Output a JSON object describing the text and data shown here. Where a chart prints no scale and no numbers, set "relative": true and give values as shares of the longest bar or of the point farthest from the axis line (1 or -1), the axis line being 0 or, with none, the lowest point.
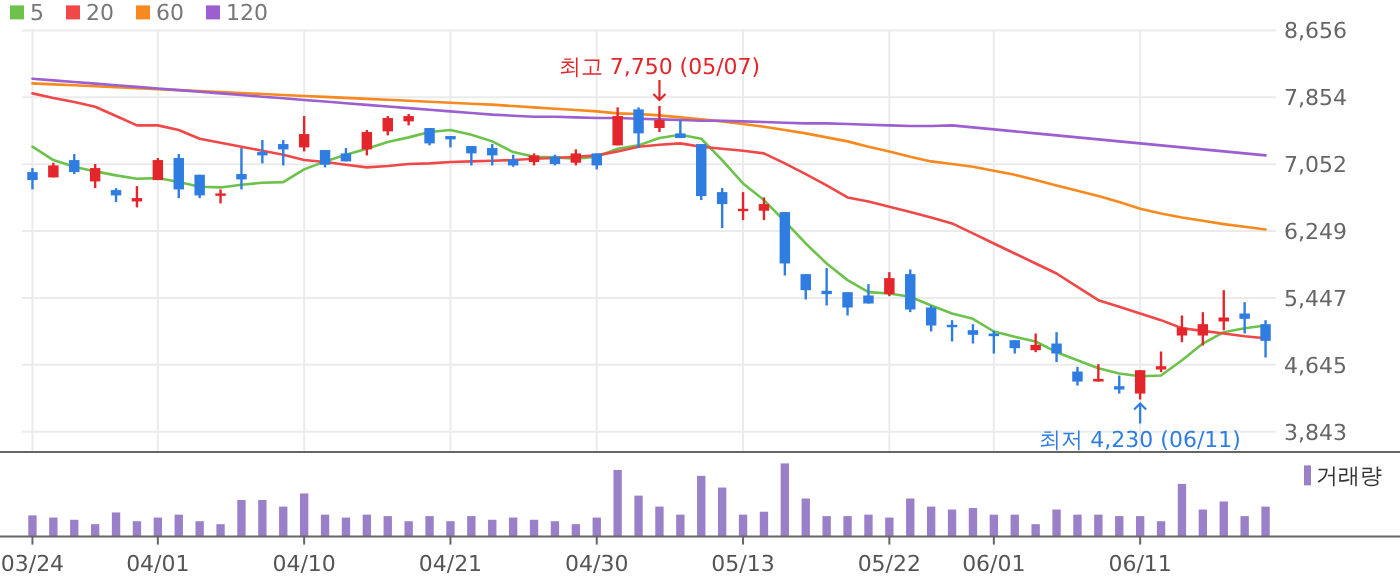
{
  "chart_data": [
    {
      "type": "candlestick",
      "categories": [
        null,
        null,
        null,
        null,
        null,
        null,
        null,
        null,
        null,
        null,
        null,
        null,
        null,
        null,
        null,
        null,
        null,
        null,
        null,
        null,
        null,
        null,
        null,
        null,
        null,
        null,
        null,
        null,
        null,
        null,
        null,
        null,
        null,
        null,
        null,
        null,
        null,
        null,
        null,
        null,
        null,
        null,
        null,
        null,
        null,
        null,
        null,
        null,
        null,
        null,
        null,
        null,
        null,
        null,
        null,
        null,
        null,
        null,
        null,
        null
      ],
      "ohlc": [
        [
          6957,
          7005,
          6749,
          6861
        ],
        [
          6893,
          7069,
          6893,
          7037
        ],
        [
          7101,
          7173,
          6933,
          6957
        ],
        [
          6845,
          7053,
          6765,
          7005
        ],
        [
          6741,
          6765,
          6597,
          6677
        ],
        [
          6605,
          6789,
          6533,
          6645
        ],
        [
          6861,
          7125,
          6861,
          7101
        ],
        [
          7125,
          7173,
          6645,
          6749
        ],
        [
          6925,
          6925,
          6645,
          6677
        ],
        [
          6685,
          6749,
          6581,
          6701
        ],
        [
          6933,
          7245,
          6749,
          6869
        ],
        [
          7197,
          7341,
          7061,
          7157
        ],
        [
          7293,
          7341,
          7037,
          7229
        ],
        [
          7253,
          7629,
          7205,
          7413
        ],
        [
          7221,
          7221,
          7013,
          7045
        ],
        [
          7181,
          7245,
          7085,
          7085
        ],
        [
          7229,
          7461,
          7157,
          7437
        ],
        [
          7445,
          7629,
          7397,
          7605
        ],
        [
          7565,
          7653,
          7517,
          7629
        ],
        [
          7485,
          7485,
          7277,
          7301
        ],
        [
          7389,
          7389,
          7253,
          7349
        ],
        [
          7269,
          7269,
          7037,
          7181
        ],
        [
          7245,
          7293,
          7037,
          7157
        ],
        [
          7109,
          7165,
          7021,
          7037
        ],
        [
          7077,
          7181,
          7037,
          7157
        ],
        [
          7141,
          7165,
          7037,
          7053
        ],
        [
          7069,
          7229,
          7037,
          7181
        ],
        [
          7181,
          7181,
          6989,
          7037
        ],
        [
          7277,
          7733,
          7277,
          7629
        ],
        [
          7709,
          7733,
          7245,
          7421
        ],
        [
          7485,
          7750,
          7437,
          7581
        ],
        [
          7421,
          7581,
          7365,
          7365
        ],
        [
          7293,
          7293,
          6621,
          6669
        ],
        [
          6717,
          6765,
          6285,
          6573
        ],
        [
          6501,
          6717,
          6381,
          6517
        ],
        [
          6493,
          6653,
          6381,
          6573
        ],
        [
          6477,
          6477,
          5717,
          5861
        ],
        [
          5733,
          5733,
          5429,
          5541
        ],
        [
          5533,
          5805,
          5357,
          5493
        ],
        [
          5517,
          5517,
          5237,
          5333
        ],
        [
          5477,
          5613,
          5381,
          5381
        ],
        [
          5493,
          5757,
          5469,
          5685
        ],
        [
          5733,
          5789,
          5277,
          5309
        ],
        [
          5333,
          5357,
          5045,
          5117
        ],
        [
          5125,
          5181,
          4925,
          5101
        ],
        [
          5061,
          5133,
          4901,
          5005
        ],
        [
          5021,
          5053,
          4781,
          4989
        ],
        [
          4941,
          4941,
          4781,
          4845
        ],
        [
          4821,
          5021,
          4797,
          4885
        ],
        [
          4901,
          5037,
          4677,
          4781
        ],
        [
          4565,
          4621,
          4397,
          4445
        ],
        [
          4445,
          4653,
          4445,
          4477
        ],
        [
          4389,
          4517,
          4301,
          4349
        ],
        [
          4301,
          4581,
          4230,
          4581
        ],
        [
          4589,
          4805,
          4557,
          4629
        ],
        [
          4997,
          5237,
          4917,
          5093
        ],
        [
          4997,
          5277,
          4877,
          5133
        ],
        [
          5165,
          5541,
          5061,
          5213
        ],
        [
          5261,
          5397,
          5021,
          5197
        ],
        [
          5133,
          5181,
          4733,
          4933
        ]
      ],
      "series": [
        {
          "type": "line",
          "name": "5",
          "color": "#6cc24a",
          "values": [
            7261,
            7101,
            7021,
            6965,
            6917,
            6877,
            6885,
            6837,
            6781,
            6773,
            6805,
            6829,
            6837,
            6989,
            7085,
            7165,
            7237,
            7317,
            7373,
            7437,
            7461,
            7405,
            7325,
            7197,
            7141,
            7133,
            7117,
            7141,
            7237,
            7277,
            7365,
            7405,
            7357,
            7101,
            6821,
            6621,
            6365,
            6101,
            5861,
            5661,
            5517,
            5501,
            5461,
            5357,
            5261,
            5197,
            5045,
            4981,
            4925,
            4797,
            4701,
            4605,
            4541,
            4509,
            4517,
            4701,
            4901,
            5037,
            5085,
            5117
          ]
        },
        {
          "type": "line",
          "name": "20",
          "color": "#f04848",
          "values": [
            7901,
            7845,
            7797,
            7741,
            7629,
            7517,
            7517,
            7461,
            7357,
            7309,
            7261,
            7213,
            7165,
            7101,
            7077,
            7045,
            7013,
            7029,
            7053,
            7061,
            7077,
            7085,
            7093,
            7101,
            7117,
            7125,
            7141,
            7157,
            7205,
            7261,
            7285,
            7301,
            7261,
            7237,
            7213,
            7181,
            7061,
            6933,
            6797,
            6653,
            6605,
            6541,
            6477,
            6413,
            6341,
            6221,
            6101,
            5981,
            5861,
            5741,
            5581,
            5421,
            5341,
            5261,
            5181,
            5085,
            5053,
            5021,
            4989,
            4965
          ]
        },
        {
          "type": "line",
          "name": "60",
          "color": "#f7891e",
          "values": [
            8021,
            8009,
            7998,
            7986,
            7975,
            7963,
            7951,
            7940,
            7928,
            7917,
            7905,
            7893,
            7882,
            7870,
            7859,
            7847,
            7835,
            7824,
            7812,
            7801,
            7789,
            7777,
            7766,
            7749,
            7733,
            7717,
            7701,
            7685,
            7661,
            7653,
            7637,
            7613,
            7589,
            7565,
            7533,
            7501,
            7461,
            7421,
            7373,
            7325,
            7261,
            7205,
            7141,
            7085,
            7053,
            7021,
            6973,
            6925,
            6861,
            6797,
            6733,
            6669,
            6597,
            6517,
            6461,
            6413,
            6373,
            6333,
            6301,
            6269
          ]
        },
        {
          "type": "line",
          "name": "120",
          "color": "#9b5fd0",
          "values": [
            8077,
            8057,
            8038,
            8018,
            7999,
            7979,
            7959,
            7940,
            7920,
            7901,
            7881,
            7861,
            7842,
            7822,
            7803,
            7783,
            7763,
            7744,
            7724,
            7705,
            7685,
            7665,
            7646,
            7633,
            7621,
            7621,
            7613,
            7605,
            7605,
            7597,
            7589,
            7581,
            7573,
            7573,
            7565,
            7557,
            7549,
            7541,
            7541,
            7533,
            7525,
            7517,
            7509,
            7509,
            7517,
            7493,
            7469,
            7445,
            7421,
            7397,
            7373,
            7349,
            7325,
            7301,
            7277,
            7253,
            7229,
            7205,
            7181,
            7157
          ]
        }
      ],
      "ylim": [
        3600,
        8656
      ],
      "yticks": [
        {
          "value": 3843,
          "label": "3,843"
        },
        {
          "value": 4645,
          "label": "4,645"
        },
        {
          "value": 5447,
          "label": "5,447"
        },
        {
          "value": 6249,
          "label": "6,249"
        },
        {
          "value": 7052,
          "label": "7,052"
        },
        {
          "value": 7854,
          "label": "7,854"
        },
        {
          "value": 8656,
          "label": "8,656"
        }
      ],
      "grid": true,
      "legend": "top left",
      "tick_labels": "y",
      "annotations": [
        {
          "text": "최고 7,750 (05/07)",
          "y": 7750
        },
        {
          "text": "최저 4,230 (06/11)",
          "y": 4230
        }
      ]
    },
    {
      "type": "bar",
      "relative": true,
      "categories": [
        "03/24",
        null,
        null,
        null,
        null,
        null,
        "04/01",
        null,
        null,
        null,
        null,
        null,
        null,
        "04/10",
        null,
        null,
        null,
        null,
        null,
        null,
        "04/21",
        null,
        null,
        null,
        null,
        null,
        null,
        "04/30",
        null,
        null,
        null,
        null,
        null,
        null,
        "05/13",
        null,
        null,
        null,
        null,
        null,
        null,
        "05/22",
        null,
        null,
        null,
        null,
        "06/01",
        null,
        null,
        null,
        null,
        null,
        null,
        "06/11",
        null,
        null,
        null,
        null,
        null,
        null
      ],
      "series": [
        {
          "name": "거래량",
          "color": "#9a80c8",
          "values": [
            0.29,
            0.26,
            0.23,
            0.17,
            0.33,
            0.21,
            0.26,
            0.3,
            0.21,
            0.17,
            0.5,
            0.5,
            0.41,
            0.59,
            0.3,
            0.26,
            0.3,
            0.28,
            0.21,
            0.28,
            0.21,
            0.28,
            0.23,
            0.26,
            0.23,
            0.21,
            0.17,
            0.26,
            0.91,
            0.56,
            0.41,
            0.3,
            0.83,
            0.67,
            0.3,
            0.34,
            1,
            0.52,
            0.28,
            0.28,
            0.3,
            0.26,
            0.52,
            0.41,
            0.37,
            0.39,
            0.3,
            0.3,
            0.17,
            0.37,
            0.3,
            0.3,
            0.28,
            0.28,
            0.21,
            0.72,
            0.37,
            0.48,
            0.28,
            0.41
          ]
        }
      ],
      "legend": "top right",
      "tick_labels": "x"
    }
  ]
}
